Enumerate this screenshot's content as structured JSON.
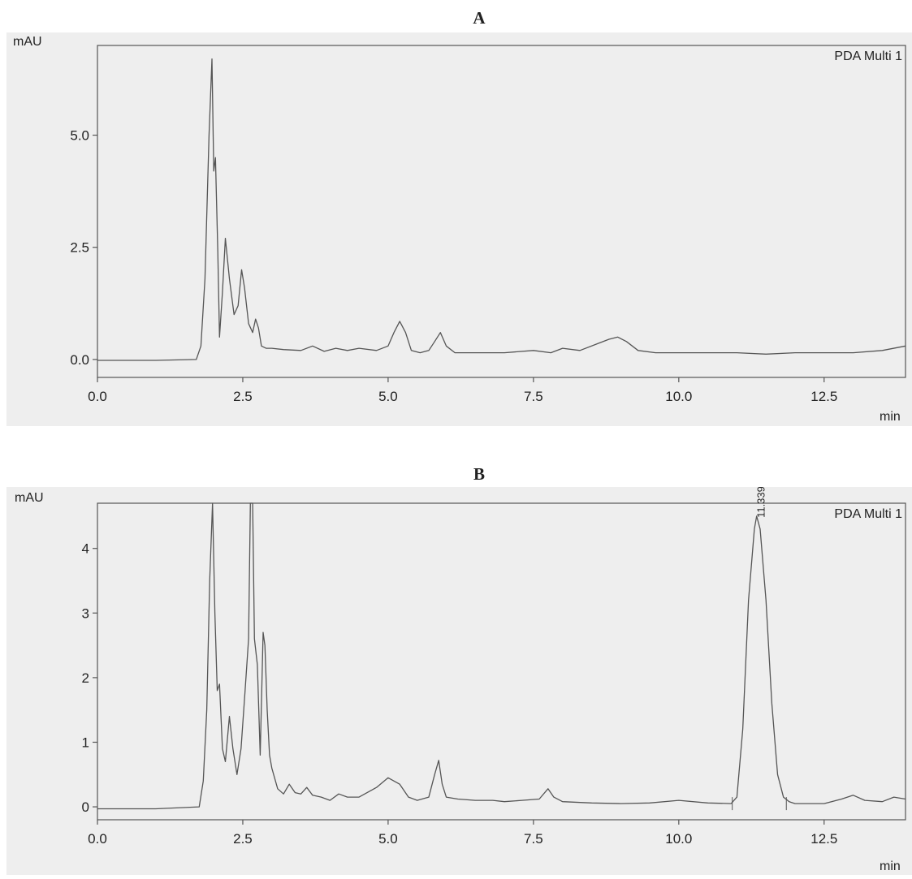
{
  "chart_data": [
    {
      "panel": "A",
      "type": "line",
      "ylabel": "mAU",
      "xlabel": "min",
      "detector": "PDA Multi 1",
      "xlim": [
        0.0,
        13.9
      ],
      "ylim": [
        -0.4,
        7.0
      ],
      "xticks": [
        0.0,
        2.5,
        5.0,
        7.5,
        10.0,
        12.5
      ],
      "xtick_labels": [
        "0.0",
        "2.5",
        "5.0",
        "7.5",
        "10.0",
        "12.5"
      ],
      "yticks": [
        0.0,
        2.5,
        5.0
      ],
      "ytick_labels": [
        "0.0",
        "2.5",
        "5.0"
      ],
      "series": [
        {
          "x": [
            0.0,
            1.0,
            1.7,
            1.78,
            1.85,
            1.92,
            1.97,
            2.0,
            2.03,
            2.07,
            2.1,
            2.15,
            2.2,
            2.27,
            2.35,
            2.42,
            2.48,
            2.53,
            2.6,
            2.67,
            2.72,
            2.77,
            2.82,
            2.9,
            3.0,
            3.2,
            3.5,
            3.7,
            3.9,
            4.1,
            4.3,
            4.5,
            4.8,
            5.0,
            5.1,
            5.2,
            5.3,
            5.4,
            5.55,
            5.7,
            5.8,
            5.9,
            6.0,
            6.15,
            6.3,
            6.6,
            7.0,
            7.5,
            7.8,
            8.0,
            8.3,
            8.6,
            8.8,
            8.95,
            9.1,
            9.3,
            9.6,
            10.0,
            10.5,
            11.0,
            11.5,
            12.0,
            12.5,
            13.0,
            13.5,
            13.9
          ],
          "y": [
            -0.02,
            -0.02,
            0.0,
            0.3,
            1.8,
            5.0,
            6.7,
            4.2,
            4.5,
            2.4,
            0.5,
            1.5,
            2.7,
            1.8,
            1.0,
            1.2,
            2.0,
            1.6,
            0.8,
            0.6,
            0.9,
            0.7,
            0.3,
            0.25,
            0.25,
            0.22,
            0.2,
            0.3,
            0.18,
            0.25,
            0.2,
            0.25,
            0.2,
            0.3,
            0.6,
            0.85,
            0.6,
            0.2,
            0.15,
            0.2,
            0.4,
            0.6,
            0.3,
            0.15,
            0.15,
            0.15,
            0.15,
            0.2,
            0.15,
            0.25,
            0.2,
            0.35,
            0.45,
            0.5,
            0.4,
            0.2,
            0.15,
            0.15,
            0.15,
            0.15,
            0.12,
            0.15,
            0.15,
            0.15,
            0.2,
            0.3
          ]
        }
      ]
    },
    {
      "panel": "B",
      "type": "line",
      "ylabel": "mAU",
      "xlabel": "min",
      "detector": "PDA Multi 1",
      "xlim": [
        0.0,
        13.9
      ],
      "ylim": [
        -0.2,
        4.7
      ],
      "xticks": [
        0.0,
        2.5,
        5.0,
        7.5,
        10.0,
        12.5
      ],
      "xtick_labels": [
        "0.0",
        "2.5",
        "5.0",
        "7.5",
        "10.0",
        "12.5"
      ],
      "yticks": [
        0,
        1,
        2,
        3,
        4
      ],
      "ytick_labels": [
        "0",
        "1",
        "2",
        "3",
        "4"
      ],
      "peak_annotation": {
        "label": "11.339",
        "x": 11.339,
        "y": 4.5
      },
      "series": [
        {
          "x": [
            0.0,
            1.0,
            1.75,
            1.82,
            1.88,
            1.93,
            1.98,
            2.02,
            2.06,
            2.1,
            2.15,
            2.2,
            2.27,
            2.33,
            2.4,
            2.47,
            2.54,
            2.6,
            2.63,
            2.67,
            2.7,
            2.75,
            2.8,
            2.85,
            2.88,
            2.92,
            2.96,
            3.0,
            3.1,
            3.2,
            3.3,
            3.4,
            3.5,
            3.6,
            3.7,
            3.85,
            4.0,
            4.15,
            4.3,
            4.5,
            4.8,
            5.0,
            5.2,
            5.35,
            5.5,
            5.7,
            5.8,
            5.87,
            5.93,
            6.0,
            6.2,
            6.5,
            6.8,
            7.0,
            7.3,
            7.6,
            7.75,
            7.85,
            8.0,
            8.5,
            9.0,
            9.5,
            10.0,
            10.5,
            10.9,
            11.0,
            11.1,
            11.2,
            11.3,
            11.34,
            11.4,
            11.5,
            11.6,
            11.7,
            11.8,
            11.9,
            12.0,
            12.5,
            12.8,
            13.0,
            13.2,
            13.5,
            13.7,
            13.9
          ],
          "y": [
            -0.03,
            -0.03,
            0.0,
            0.4,
            1.5,
            3.5,
            4.9,
            3.0,
            1.8,
            1.9,
            0.9,
            0.7,
            1.4,
            0.9,
            0.5,
            0.9,
            1.8,
            2.6,
            4.9,
            4.9,
            2.6,
            2.2,
            0.8,
            2.7,
            2.5,
            1.5,
            0.8,
            0.6,
            0.28,
            0.2,
            0.35,
            0.22,
            0.2,
            0.3,
            0.18,
            0.15,
            0.1,
            0.2,
            0.15,
            0.15,
            0.3,
            0.45,
            0.35,
            0.15,
            0.1,
            0.15,
            0.5,
            0.72,
            0.35,
            0.15,
            0.12,
            0.1,
            0.1,
            0.08,
            0.1,
            0.12,
            0.28,
            0.15,
            0.08,
            0.06,
            0.05,
            0.06,
            0.1,
            0.06,
            0.05,
            0.15,
            1.2,
            3.2,
            4.3,
            4.5,
            4.3,
            3.2,
            1.6,
            0.5,
            0.15,
            0.08,
            0.05,
            0.05,
            0.12,
            0.18,
            0.1,
            0.08,
            0.15,
            0.12
          ]
        }
      ]
    }
  ]
}
